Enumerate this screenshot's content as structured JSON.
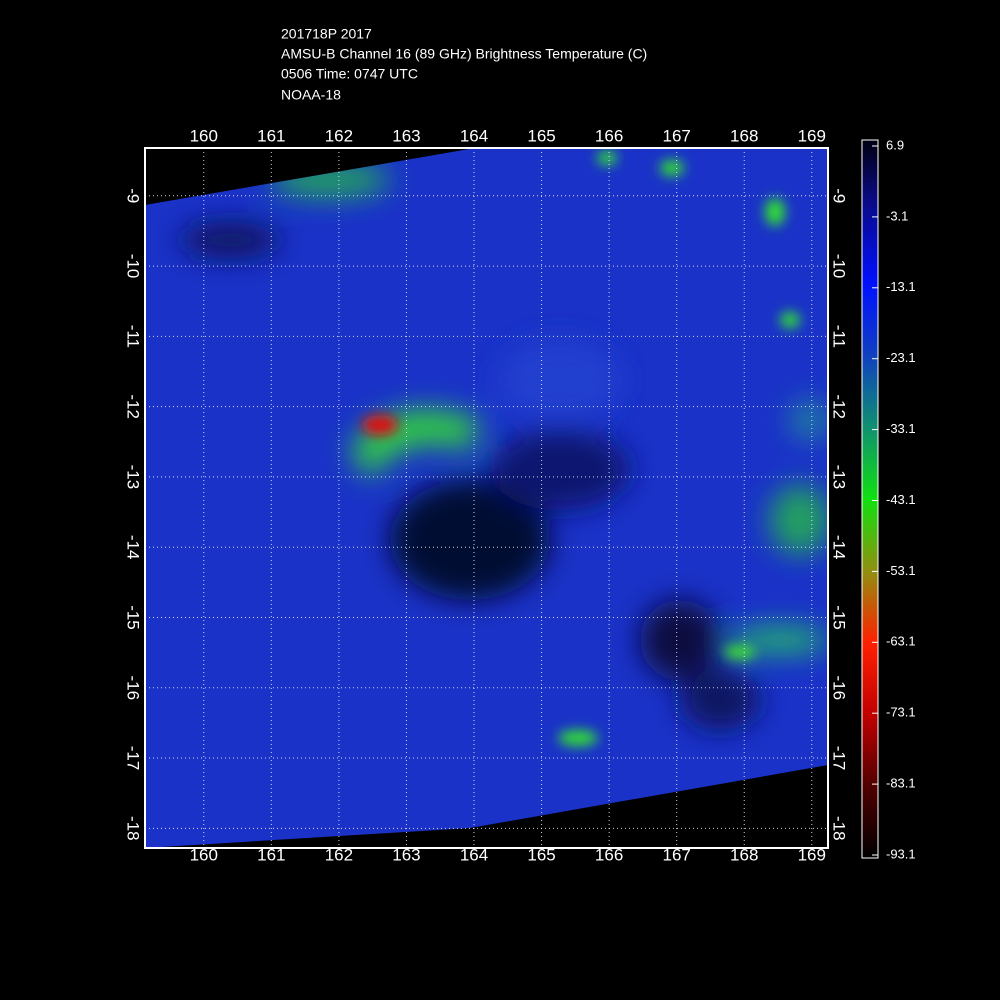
{
  "header": {
    "lines": [
      "201718P 2017",
      "AMSU-B Channel 16 (89 GHz) Brightness Temperature (C)",
      "0506 Time: 0747 UTC",
      "NOAA-18"
    ]
  },
  "map": {
    "xlim": [
      159.13,
      169.24
    ],
    "ylim": [
      -18.28,
      -8.32
    ],
    "xticks": [
      160,
      161,
      162,
      163,
      164,
      165,
      166,
      167,
      168,
      169
    ],
    "yticks": [
      -9,
      -10,
      -11,
      -12,
      -13,
      -14,
      -15,
      -16,
      -17,
      -18
    ],
    "grid": true
  },
  "colorbar": {
    "ticks": [
      6.9,
      -3.1,
      -13.1,
      -23.1,
      -33.1,
      -43.1,
      -53.1,
      -63.1,
      -73.1,
      -83.1,
      -93.1
    ]
  }
}
